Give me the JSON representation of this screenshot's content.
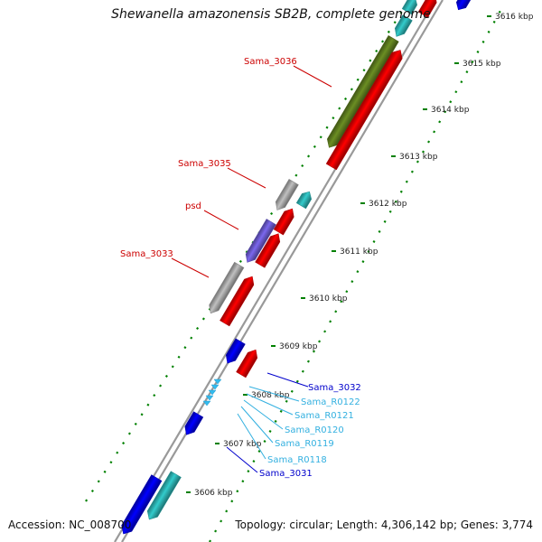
{
  "title": "Shewanella amazonensis SB2B, complete genome",
  "footer": {
    "accession": "Accession: NC_008700",
    "topology": "Topology: circular; Length: 4,306,142 bp; Genes: 3,774"
  },
  "scale_labels": [
    "3606 kbp",
    "3607 kbp",
    "3608 kbp",
    "3609 kbp",
    "3610 kbp",
    "3611 kbp",
    "3612 kbp",
    "3613 kbp",
    "3614 kbp",
    "3615 kbp",
    "3616 kbp"
  ],
  "gene_labels": [
    {
      "text": "Sama_3036",
      "color": "#cc0000"
    },
    {
      "text": "Sama_3035",
      "color": "#cc0000"
    },
    {
      "text": "psd",
      "color": "#cc0000"
    },
    {
      "text": "Sama_3033",
      "color": "#cc0000"
    },
    {
      "text": "Sama_3032",
      "color": "#0000cc"
    },
    {
      "text": "Sama_R0122",
      "color": "#33b0e0"
    },
    {
      "text": "Sama_R0121",
      "color": "#33b0e0"
    },
    {
      "text": "Sama_R0120",
      "color": "#33b0e0"
    },
    {
      "text": "Sama_R0119",
      "color": "#33b0e0"
    },
    {
      "text": "Sama_R0118",
      "color": "#33b0e0"
    },
    {
      "text": "Sama_3031",
      "color": "#0000cc"
    }
  ],
  "colors": {
    "forward_cds": "#ff0000",
    "reverse_cds": "#0000ff",
    "rna": "#33cccc",
    "cog_olive": "#6b8e23",
    "cog_lavender": "#7b68ee",
    "cog_grey": "#c0c0c0",
    "backbone": "#999999",
    "tick": "#008000"
  }
}
